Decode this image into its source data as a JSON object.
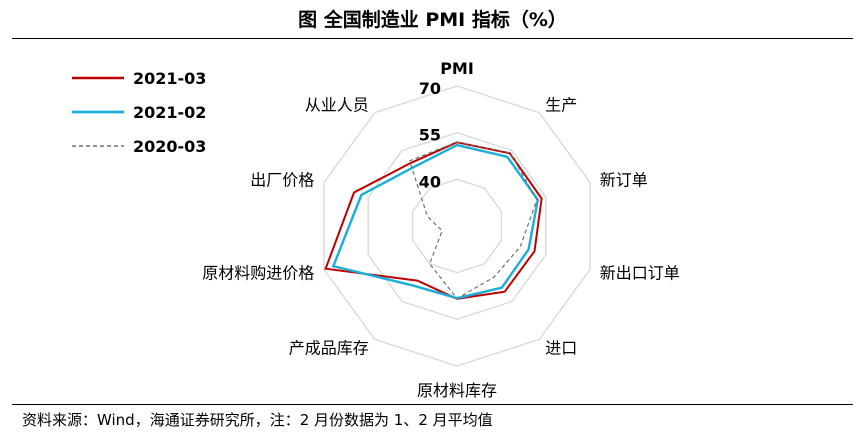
{
  "title": "图  全国制造业 PMI 指标（%）",
  "source": "资料来源：Wind，海通证券研究所，注：2 月份数据为 1、2 月平均值",
  "chart_data": {
    "type": "radar",
    "title": "图  全国制造业 PMI 指标（%）",
    "axes": [
      "PMI",
      "生产",
      "新订单",
      "新出口订单",
      "进口",
      "原材料库存",
      "产成品库存",
      "原材料购进价格",
      "出厂价格",
      "从业人员"
    ],
    "rlim": [
      25,
      70
    ],
    "ticks": [
      "40",
      "55",
      "70"
    ],
    "tick_values": [
      40,
      55,
      70
    ],
    "grid": true,
    "legend_position": "top-left",
    "series": [
      {
        "name": "2021-03",
        "color": "#c00000",
        "dash": false,
        "width": 2,
        "values": [
          51.9,
          53.9,
          53.6,
          51.2,
          51.1,
          48.4,
          46.7,
          69.4,
          59.8,
          50.1
        ]
      },
      {
        "name": "2021-02",
        "color": "#1aaed8",
        "dash": false,
        "width": 2.4,
        "values": [
          51.0,
          52.5,
          52.3,
          49.2,
          49.5,
          48.2,
          48.7,
          66.8,
          57.3,
          48.5
        ]
      },
      {
        "name": "2020-03",
        "color": "#707070",
        "dash": true,
        "width": 1.2,
        "values": [
          52.0,
          54.1,
          52.0,
          46.4,
          45.3,
          48.3,
          40.0,
          30.0,
          35.0,
          50.9
        ]
      }
    ]
  }
}
